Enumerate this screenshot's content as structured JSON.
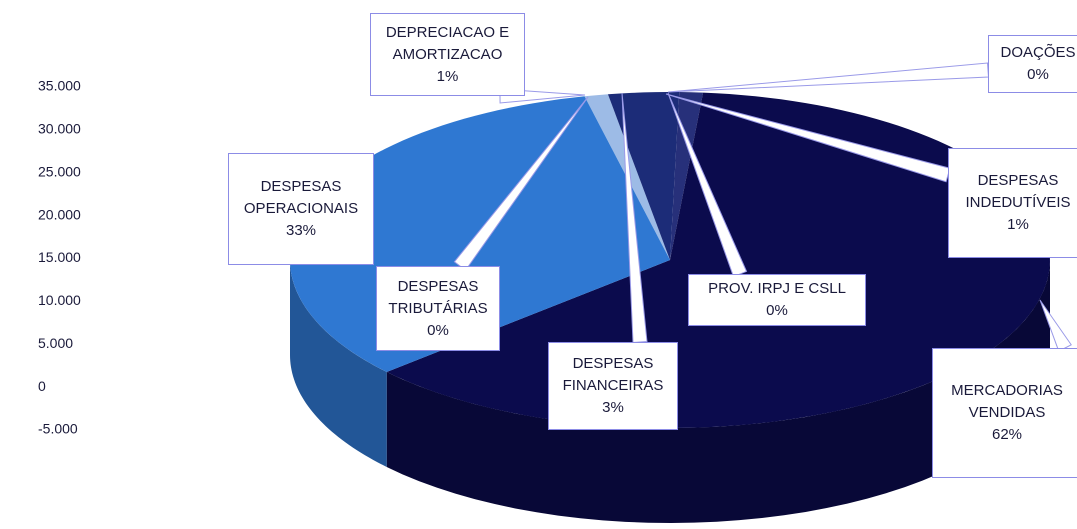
{
  "chart_data": {
    "type": "pie3d",
    "categories": [
      "DEPRECIACAO E AMORTIZACAO",
      "DESPESAS TRIBUTÁRIAS",
      "DESPESAS FINANCEIRAS",
      "PROV. IRPJ E CSLL",
      "DOAÇÕES",
      "DESPESAS INDEDUTÍVEIS",
      "MERCADORIAS VENDIDAS",
      "DESPESAS OPERACIONAIS"
    ],
    "values": [
      1,
      0,
      3,
      0,
      0,
      1,
      62,
      33
    ],
    "value_labels": [
      "1%",
      "0%",
      "3%",
      "0%",
      "0%",
      "1%",
      "62%",
      "33%"
    ],
    "colors": [
      "#9dbbe6",
      "#5b8fd6",
      "#1c2c78",
      "#101a5c",
      "#0e1650",
      "#27307a",
      "#0b0b4d",
      "#2f78d2"
    ],
    "ylim": [
      -5000,
      35000
    ],
    "yticks": [
      {
        "value": -5000,
        "label": "-5.000"
      },
      0,
      {
        "value": 5000,
        "label": "5.000"
      },
      {
        "value": 10000,
        "label": "10.000"
      },
      {
        "value": 15000,
        "label": "15.000"
      },
      {
        "value": 20000,
        "label": "20.000"
      },
      {
        "value": 25000,
        "label": "25.000"
      },
      {
        "value": 30000,
        "label": "30.000"
      },
      {
        "value": 35000,
        "label": "35.000"
      }
    ]
  }
}
